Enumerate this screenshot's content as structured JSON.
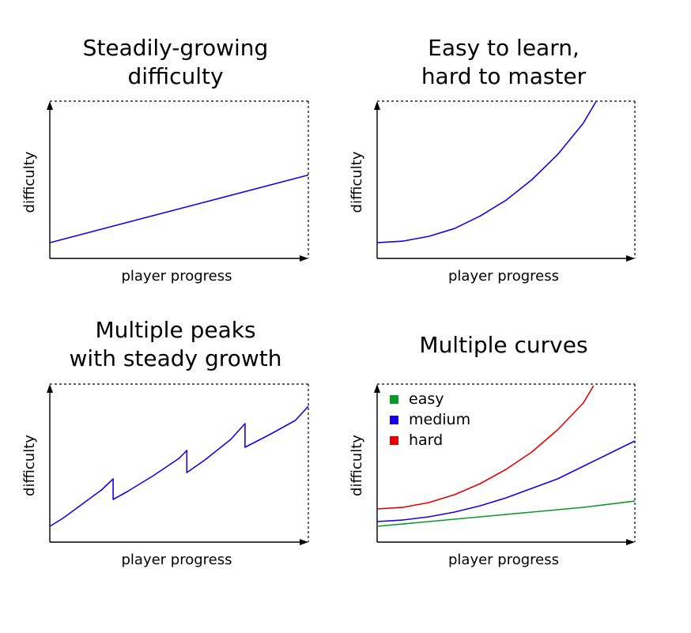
{
  "chart_data": [
    {
      "type": "line",
      "title_lines": [
        "Steadily-growing",
        "difficulty"
      ],
      "xlabel": "player progress",
      "ylabel": "difficulty",
      "xlim": [
        0,
        1
      ],
      "ylim": [
        0,
        1
      ],
      "grid": false,
      "axes_style": "arrowed left and bottom axes; dashed top and right frame",
      "series": [
        {
          "color": "#1a00e6",
          "x": [
            0,
            1
          ],
          "y": [
            0.1,
            0.53
          ]
        }
      ]
    },
    {
      "type": "line",
      "title_lines": [
        "Easy to learn,",
        "hard to master"
      ],
      "xlabel": "player progress",
      "ylabel": "difficulty",
      "xlim": [
        0,
        1
      ],
      "ylim": [
        0,
        1
      ],
      "grid": false,
      "axes_style": "arrowed left and bottom axes; dashed top and right frame",
      "series": [
        {
          "color": "#1a00e6",
          "x": [
            0,
            0.1,
            0.2,
            0.3,
            0.4,
            0.5,
            0.6,
            0.7,
            0.8,
            0.85
          ],
          "y": [
            0.1,
            0.11,
            0.14,
            0.19,
            0.27,
            0.37,
            0.5,
            0.66,
            0.86,
            1.0
          ]
        }
      ]
    },
    {
      "type": "line",
      "title_lines": [
        "Multiple peaks",
        "with steady growth"
      ],
      "xlabel": "player progress",
      "ylabel": "difficulty",
      "xlim": [
        0,
        1
      ],
      "ylim": [
        0,
        1
      ],
      "grid": false,
      "axes_style": "arrowed left and bottom axes; dashed top and right frame",
      "series": [
        {
          "color": "#1a00e6",
          "x": [
            0,
            0.05,
            0.1,
            0.15,
            0.2,
            0.245,
            0.245,
            0.3,
            0.4,
            0.5,
            0.53,
            0.53,
            0.6,
            0.7,
            0.755,
            0.755,
            0.85,
            0.95,
            1.0
          ],
          "y": [
            0.1,
            0.15,
            0.21,
            0.27,
            0.33,
            0.4,
            0.27,
            0.32,
            0.42,
            0.53,
            0.58,
            0.44,
            0.52,
            0.65,
            0.75,
            0.6,
            0.68,
            0.77,
            0.86
          ]
        }
      ]
    },
    {
      "type": "line",
      "title_lines": [
        "Multiple curves"
      ],
      "xlabel": "player progress",
      "ylabel": "difficulty",
      "xlim": [
        0,
        1
      ],
      "ylim": [
        0,
        1
      ],
      "grid": false,
      "axes_style": "arrowed left and bottom axes; dashed top and right frame",
      "legend_position": "top-left",
      "series": [
        {
          "name": "easy",
          "color": "#0a9a2a",
          "x": [
            0,
            0.2,
            0.4,
            0.6,
            0.8,
            1.0
          ],
          "y": [
            0.1,
            0.13,
            0.16,
            0.19,
            0.22,
            0.26
          ]
        },
        {
          "name": "medium",
          "color": "#1a00e6",
          "x": [
            0,
            0.1,
            0.2,
            0.3,
            0.4,
            0.5,
            0.6,
            0.7,
            0.8,
            0.9,
            1.0
          ],
          "y": [
            0.13,
            0.14,
            0.16,
            0.19,
            0.23,
            0.28,
            0.34,
            0.4,
            0.48,
            0.56,
            0.64
          ]
        },
        {
          "name": "hard",
          "color": "#e60000",
          "x": [
            0,
            0.1,
            0.2,
            0.3,
            0.4,
            0.5,
            0.6,
            0.7,
            0.8,
            0.84
          ],
          "y": [
            0.21,
            0.22,
            0.25,
            0.3,
            0.37,
            0.46,
            0.57,
            0.71,
            0.88,
            0.99
          ]
        }
      ]
    }
  ]
}
